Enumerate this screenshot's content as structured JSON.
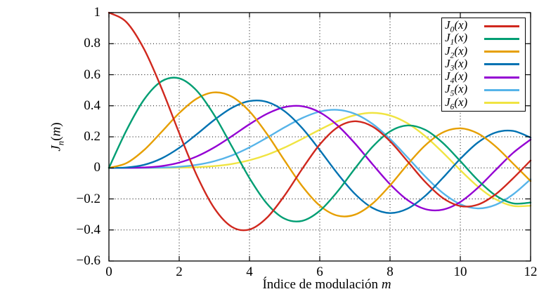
{
  "figure": {
    "background": "#ffffff",
    "border_color": "#000000",
    "grid_style": "dotted",
    "grid_color": "#000000"
  },
  "chart_data": {
    "type": "line",
    "title": "",
    "xlabel": "Índice de modulación m",
    "ylabel": "J_n(m)",
    "xlabel_parts": {
      "text": "Índice de modulación ",
      "var": "m"
    },
    "ylabel_parts": {
      "base": "J",
      "sub": "n",
      "open": "(",
      "var": "m",
      "close": ")"
    },
    "xlim": [
      0,
      12
    ],
    "ylim": [
      -0.6,
      1
    ],
    "xticks": [
      0,
      2,
      4,
      6,
      8,
      10,
      12
    ],
    "yticks": [
      -0.6,
      -0.4,
      -0.2,
      0,
      0.2,
      0.4,
      0.6,
      0.8,
      1
    ],
    "xtick_labels": [
      "0",
      "2",
      "4",
      "6",
      "8",
      "10",
      "12"
    ],
    "ytick_labels": [
      "−0.6",
      "−0.4",
      "−0.2",
      "0",
      "0.2",
      "0.4",
      "0.6",
      "0.8",
      "1"
    ],
    "grid": "dotted",
    "legend_position": "top-right",
    "x_start": 0,
    "x_step": 0.5,
    "series": [
      {
        "name": "J_0(x)",
        "order": 0,
        "color": "#d0281e",
        "values": [
          1.0,
          0.9385,
          0.7652,
          0.5118,
          0.2239,
          -0.0484,
          -0.2601,
          -0.3801,
          -0.3971,
          -0.3205,
          -0.1776,
          -0.0068,
          0.1506,
          0.2601,
          0.3001,
          0.2663,
          0.1717,
          0.0419,
          -0.0903,
          -0.1939,
          -0.2459,
          -0.2366,
          -0.1712,
          -0.0677,
          0.0477
        ]
      },
      {
        "name": "J_1(x)",
        "order": 1,
        "color": "#009e73",
        "values": [
          0.0,
          0.2423,
          0.4401,
          0.5579,
          0.5767,
          0.4971,
          0.3391,
          0.1374,
          -0.066,
          -0.2311,
          -0.3276,
          -0.3414,
          -0.2767,
          -0.1538,
          -0.0047,
          0.1352,
          0.2346,
          0.2731,
          0.2453,
          0.1613,
          0.0435,
          -0.0789,
          -0.1768,
          -0.2284,
          -0.2234
        ]
      },
      {
        "name": "J_2(x)",
        "order": 2,
        "color": "#e69f00",
        "values": [
          0.0,
          0.0306,
          0.1149,
          0.2321,
          0.3528,
          0.4461,
          0.4861,
          0.4586,
          0.3641,
          0.2178,
          0.0466,
          -0.1173,
          -0.2429,
          -0.3074,
          -0.3014,
          -0.2303,
          -0.113,
          0.0223,
          0.1448,
          0.2279,
          0.2546,
          0.2216,
          0.139,
          0.028,
          -0.0849
        ]
      },
      {
        "name": "J_3(x)",
        "order": 3,
        "color": "#0072b2",
        "values": [
          0.0,
          0.0026,
          0.0196,
          0.061,
          0.1289,
          0.2166,
          0.3091,
          0.3868,
          0.4302,
          0.4247,
          0.3648,
          0.2561,
          0.1148,
          -0.0353,
          -0.1676,
          -0.2581,
          -0.2911,
          -0.2626,
          -0.1809,
          -0.0653,
          0.0584,
          0.1633,
          0.2273,
          0.2381,
          0.1951
        ]
      },
      {
        "name": "J_4(x)",
        "order": 4,
        "color": "#9400d3",
        "values": [
          0.0,
          0.0002,
          0.0025,
          0.0118,
          0.034,
          0.0738,
          0.132,
          0.2044,
          0.2811,
          0.3484,
          0.3912,
          0.3967,
          0.3576,
          0.2748,
          0.1578,
          0.0238,
          -0.1054,
          -0.2077,
          -0.2655,
          -0.2691,
          -0.2196,
          -0.1283,
          -0.015,
          0.0962,
          0.1825
        ]
      },
      {
        "name": "J_5(x)",
        "order": 5,
        "color": "#56b4e9",
        "values": [
          0.0,
          0.0,
          0.0002,
          0.0018,
          0.007,
          0.0195,
          0.043,
          0.0804,
          0.1321,
          0.1947,
          0.2611,
          0.3209,
          0.3621,
          0.3735,
          0.3479,
          0.2835,
          0.1858,
          0.0671,
          -0.055,
          -0.1613,
          -0.2341,
          -0.2611,
          -0.2383,
          -0.1712,
          -0.0735
        ]
      },
      {
        "name": "J_6(x)",
        "order": 6,
        "color": "#f0e442",
        "values": [
          0.0,
          0.0,
          0.0,
          0.0002,
          0.0012,
          0.0044,
          0.0114,
          0.0254,
          0.0491,
          0.0843,
          0.131,
          0.1868,
          0.2458,
          0.2999,
          0.3392,
          0.3542,
          0.3376,
          0.2866,
          0.2043,
          0.0993,
          -0.0145,
          -0.1204,
          -0.2016,
          -0.2451,
          -0.2437
        ]
      }
    ]
  }
}
